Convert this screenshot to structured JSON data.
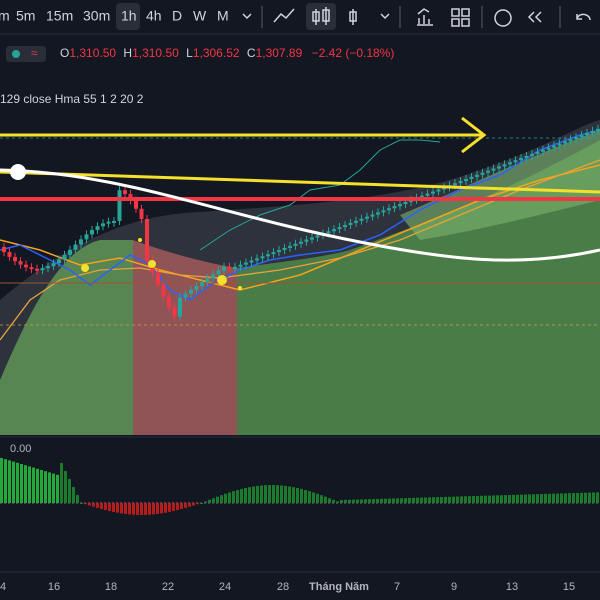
{
  "toolbar": {
    "timeframes": [
      "m",
      "5m",
      "15m",
      "30m",
      "1h",
      "4h",
      "D",
      "W",
      "M"
    ]
  },
  "legend": {
    "o_label": "O",
    "open": "1,310.50",
    "h_label": "H",
    "high": "1,310.50",
    "l_label": "L",
    "low": "1,306.52",
    "c_label": "C",
    "close": "1,307.89",
    "change": "−2.42 (−0.18%)"
  },
  "indicator": {
    "label": "129 close Hma 55 1 2 20 2"
  },
  "oscillator": {
    "label": "0.00"
  },
  "x_axis": {
    "labels": [
      "4",
      "16",
      "18",
      "22",
      "24",
      "28",
      "Tháng Năm",
      "7",
      "9",
      "13",
      "15"
    ]
  }
}
